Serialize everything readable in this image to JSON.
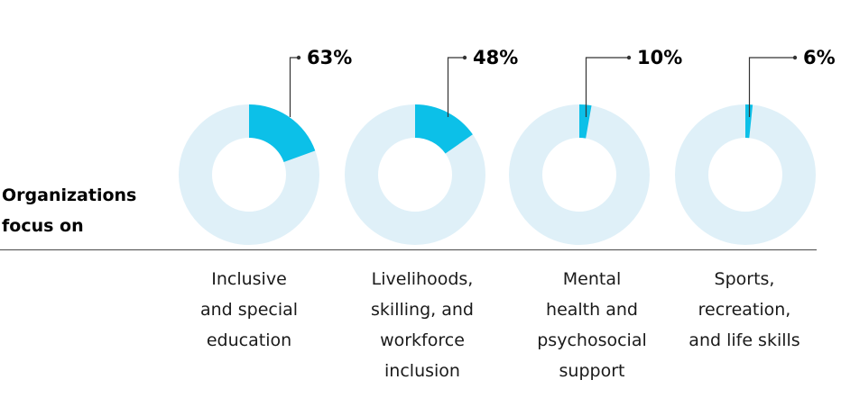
{
  "row_label": [
    "Organizations",
    "focus on"
  ],
  "colors": {
    "accent": "#0cc0e8",
    "track": "#dff0f8",
    "line": "#333333"
  },
  "chart_data": {
    "type": "pie",
    "title": "",
    "categories": [
      [
        "Inclusive",
        "and special",
        "education"
      ],
      [
        "Livelihoods,",
        "skilling, and",
        "workforce",
        "inclusion"
      ],
      [
        "Mental",
        "health and",
        "psychosocial",
        "support"
      ],
      [
        "Sports,",
        "recreation,",
        "and life skills"
      ]
    ],
    "values": [
      63,
      48,
      10,
      6
    ],
    "value_labels": [
      "63%",
      "48%",
      "10%",
      "6%"
    ]
  }
}
